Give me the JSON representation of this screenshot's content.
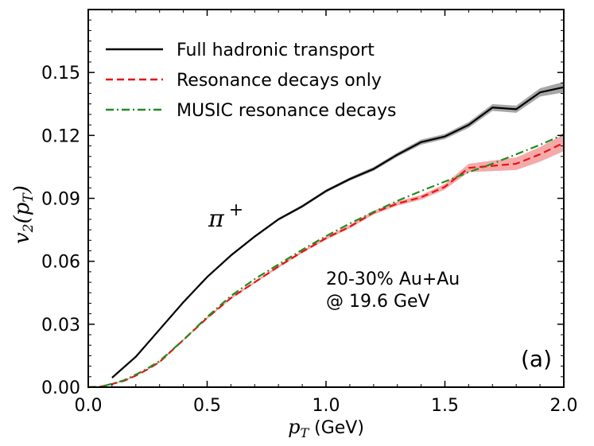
{
  "chart_data": {
    "type": "line",
    "xlabel_var": "p",
    "xlabel_sub": "T",
    "xlabel_unit": " (GeV)",
    "ylabel_var": "v",
    "ylabel_sub": "2",
    "ylabel_arg_var": "p",
    "ylabel_arg_sub": "T",
    "xlim": [
      0.0,
      2.0
    ],
    "ylim": [
      0.0,
      0.18
    ],
    "x_ticks": [
      0.0,
      0.5,
      1.0,
      1.5,
      2.0
    ],
    "x_tick_labels": [
      "0.0",
      "0.5",
      "1.0",
      "1.5",
      "2.0"
    ],
    "y_ticks": [
      0.0,
      0.03,
      0.06,
      0.09,
      0.12,
      0.15
    ],
    "y_tick_labels": [
      "0.00",
      "0.03",
      "0.06",
      "0.09",
      "0.12",
      "0.15"
    ],
    "legend_position": "top-left",
    "grid": false,
    "series": [
      {
        "name": "Full hadronic transport",
        "color": "#000000",
        "dash": "solid",
        "band_color": "#888888",
        "x": [
          0.1,
          0.2,
          0.3,
          0.4,
          0.5,
          0.6,
          0.7,
          0.8,
          0.9,
          1.0,
          1.1,
          1.2,
          1.3,
          1.4,
          1.5,
          1.6,
          1.7,
          1.8,
          1.9,
          2.0
        ],
        "y": [
          0.0045,
          0.0145,
          0.0275,
          0.0405,
          0.0525,
          0.0628,
          0.0718,
          0.08,
          0.0862,
          0.0935,
          0.0992,
          0.104,
          0.1108,
          0.1168,
          0.1195,
          0.125,
          0.1333,
          0.1325,
          0.1405,
          0.143
        ],
        "err": [
          0.0004,
          0.0004,
          0.0005,
          0.0005,
          0.0005,
          0.0006,
          0.0006,
          0.0006,
          0.0007,
          0.0007,
          0.0008,
          0.0009,
          0.001,
          0.0012,
          0.0012,
          0.0014,
          0.0016,
          0.0017,
          0.002,
          0.0025
        ]
      },
      {
        "name": "Resonance decays only",
        "color": "#ee1111",
        "dash": "dashed",
        "band_color": "#f28e8e",
        "x": [
          0.0,
          0.05,
          0.1,
          0.15,
          0.2,
          0.25,
          0.3,
          0.4,
          0.5,
          0.6,
          0.7,
          0.8,
          0.9,
          1.0,
          1.1,
          1.2,
          1.3,
          1.4,
          1.5,
          1.6,
          1.7,
          1.8,
          1.9,
          2.0
        ],
        "y": [
          0.0,
          0.0002,
          0.0015,
          0.003,
          0.0055,
          0.0085,
          0.012,
          0.0225,
          0.033,
          0.0425,
          0.05,
          0.0575,
          0.0645,
          0.071,
          0.0765,
          0.0832,
          0.0875,
          0.0905,
          0.0955,
          0.1045,
          0.1055,
          0.1065,
          0.111,
          0.1165
        ],
        "err": [
          0.0,
          0.0001,
          0.0002,
          0.0003,
          0.0003,
          0.0003,
          0.0004,
          0.0004,
          0.0005,
          0.0005,
          0.0005,
          0.0006,
          0.0006,
          0.0007,
          0.0008,
          0.0009,
          0.001,
          0.0011,
          0.0013,
          0.002,
          0.0025,
          0.003,
          0.0035,
          0.004
        ]
      },
      {
        "name": "MUSIC resonance decays",
        "color": "#228b22",
        "dash": "dashdot",
        "x": [
          0.0,
          0.05,
          0.1,
          0.15,
          0.2,
          0.25,
          0.3,
          0.4,
          0.5,
          0.6,
          0.7,
          0.8,
          0.9,
          1.0,
          1.1,
          1.2,
          1.3,
          1.4,
          1.5,
          1.6,
          1.7,
          1.8,
          1.9,
          2.0
        ],
        "y": [
          0.0,
          0.0002,
          0.0016,
          0.0033,
          0.006,
          0.009,
          0.0125,
          0.0225,
          0.0335,
          0.0435,
          0.0515,
          0.0585,
          0.0655,
          0.072,
          0.078,
          0.0835,
          0.0888,
          0.0935,
          0.098,
          0.1025,
          0.1065,
          0.111,
          0.1155,
          0.1205
        ]
      }
    ],
    "annotations": {
      "particle_base": "π",
      "particle_sup": "+",
      "system_line1": "20-30% Au+Au",
      "system_line2": "@ 19.6 GeV",
      "panel": "(a)"
    }
  }
}
